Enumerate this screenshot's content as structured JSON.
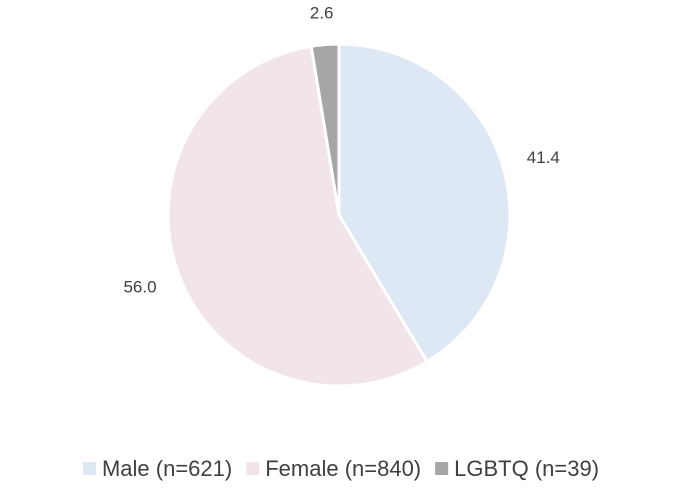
{
  "chart_data": {
    "type": "pie",
    "categories": [
      "Male (n=621)",
      "Female (n=840)",
      "LGBTQ (n=39)"
    ],
    "values": [
      41.4,
      56.0,
      2.6
    ],
    "value_labels": [
      "41.4",
      "56.0",
      "2.6"
    ],
    "colors": [
      "#dee8f4",
      "#f1e4ea",
      "#a6a6a6"
    ],
    "legend": "bottom"
  }
}
